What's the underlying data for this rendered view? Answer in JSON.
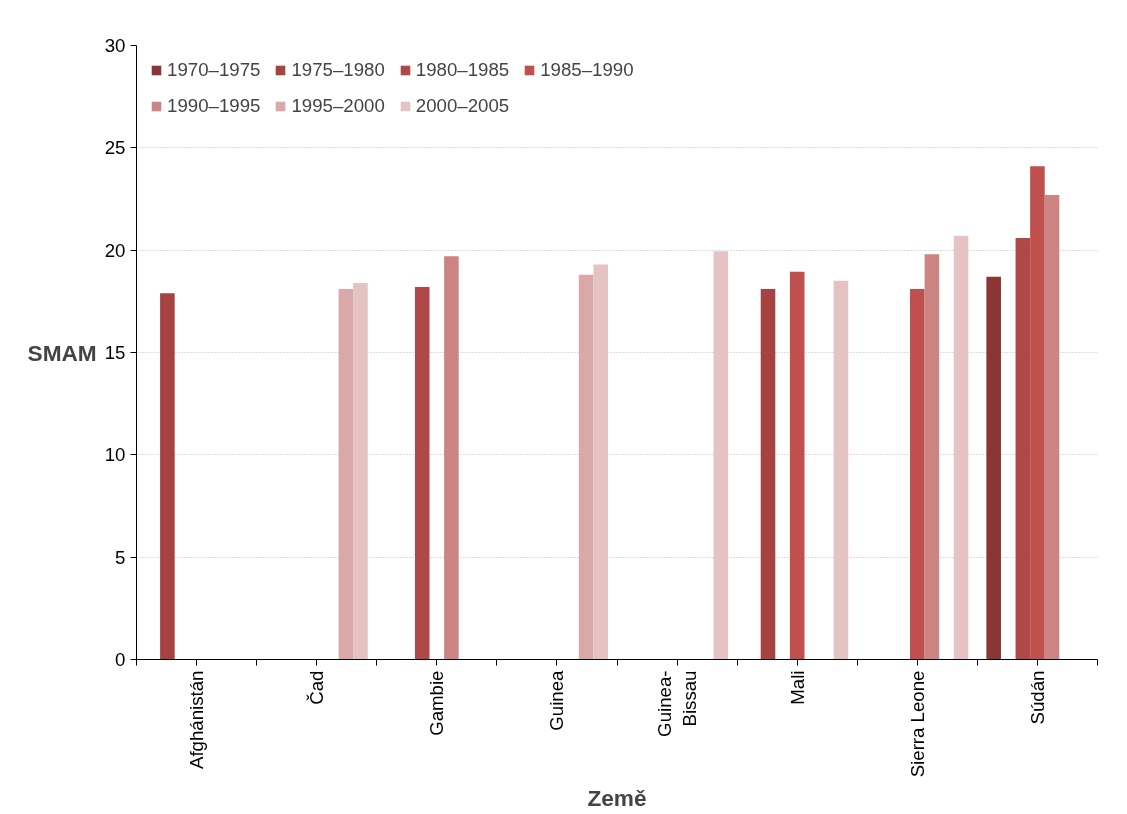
{
  "chart_data": {
    "type": "bar",
    "xlabel": "Země",
    "ylabel": "SMAM",
    "categories": [
      "Afghánistán",
      "Čad",
      "Gambie",
      "Guinea",
      "Guinea-Bissau",
      "Mali",
      "Sierra Leone",
      "Súdán"
    ],
    "series": [
      {
        "name": "1970–1975",
        "color": "#8b3535",
        "values": [
          null,
          null,
          null,
          null,
          null,
          null,
          null,
          18.7
        ]
      },
      {
        "name": "1975–1980",
        "color": "#a64341",
        "values": [
          17.9,
          null,
          null,
          null,
          null,
          18.1,
          null,
          null
        ]
      },
      {
        "name": "1980–1985",
        "color": "#b0484a",
        "values": [
          null,
          null,
          18.2,
          null,
          null,
          null,
          null,
          20.6
        ]
      },
      {
        "name": "1985–1990",
        "color": "#c0504d",
        "values": [
          null,
          null,
          null,
          null,
          null,
          18.95,
          18.1,
          24.1
        ]
      },
      {
        "name": "1990–1995",
        "color": "#cd8584",
        "values": [
          null,
          null,
          19.7,
          null,
          null,
          null,
          19.8,
          22.7
        ]
      },
      {
        "name": "1995–2000",
        "color": "#daa8a8",
        "values": [
          null,
          18.1,
          null,
          18.8,
          null,
          null,
          null,
          null
        ]
      },
      {
        "name": "2000–2005",
        "color": "#e6c3c3",
        "values": [
          null,
          18.4,
          null,
          19.3,
          19.95,
          18.5,
          20.7,
          null
        ]
      }
    ],
    "ylim": [
      0,
      30
    ],
    "yticks": [
      0,
      5,
      10,
      15,
      20,
      25,
      30
    ],
    "grid": "y",
    "legend": "top left"
  }
}
